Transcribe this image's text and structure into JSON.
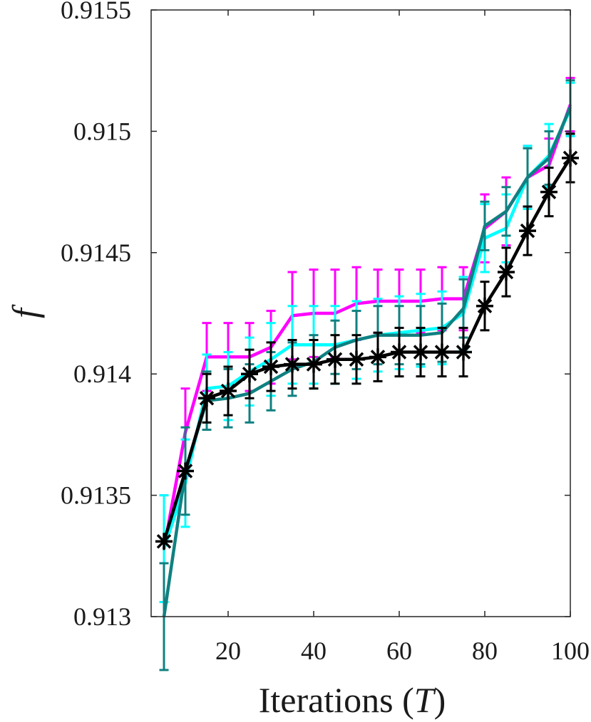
{
  "chart_data": {
    "type": "line",
    "title": "",
    "xlabel": "Iterations",
    "xlabel_var": "T",
    "ylabel": "f",
    "xlim": [
      2,
      100
    ],
    "ylim": [
      0.913,
      0.9155
    ],
    "x_ticks": [
      20,
      40,
      60,
      80,
      100
    ],
    "x_tick_labels": [
      "20",
      "40",
      "60",
      "80",
      "100"
    ],
    "y_ticks": [
      0.913,
      0.9135,
      0.914,
      0.9145,
      0.915,
      0.9155
    ],
    "y_tick_labels": [
      "0.913",
      "0.9135",
      "0.914",
      "0.9145",
      "0.915",
      "0.9155"
    ],
    "grid": false,
    "legend": null,
    "series": [
      {
        "color": "#ff00ff",
        "marker": "none",
        "x": [
          5,
          10,
          15,
          20,
          25,
          30,
          35,
          40,
          45,
          50,
          55,
          60,
          65,
          70,
          75,
          80,
          85,
          90,
          95,
          100
        ],
        "y": [
          0.91328,
          0.91376,
          0.91407,
          0.91407,
          0.91407,
          0.91411,
          0.91424,
          0.91425,
          0.91425,
          0.91429,
          0.9143,
          0.9143,
          0.9143,
          0.91431,
          0.91431,
          0.9146,
          0.91467,
          0.91481,
          0.91486,
          0.91511
        ],
        "err": [
          0.00022,
          0.00018,
          0.00014,
          0.00014,
          0.00014,
          0.00015,
          0.00018,
          0.00018,
          0.00018,
          0.00015,
          0.00013,
          0.00013,
          0.00013,
          0.00013,
          0.00013,
          0.00014,
          0.00014,
          0.00013,
          0.00011,
          0.00011
        ]
      },
      {
        "color": "#00ffff",
        "marker": "none",
        "x": [
          5,
          10,
          15,
          20,
          25,
          30,
          35,
          40,
          45,
          50,
          55,
          60,
          65,
          70,
          75,
          80,
          85,
          90,
          95,
          100
        ],
        "y": [
          0.91328,
          0.91355,
          0.91394,
          0.91395,
          0.91401,
          0.91406,
          0.91412,
          0.91412,
          0.91412,
          0.91414,
          0.91416,
          0.91417,
          0.91418,
          0.91419,
          0.91425,
          0.91456,
          0.9146,
          0.91481,
          0.9149,
          0.91509
        ],
        "err": [
          0.00022,
          0.00018,
          0.00014,
          0.00014,
          0.00014,
          0.00015,
          0.00016,
          0.00016,
          0.00016,
          0.00016,
          0.00015,
          0.00015,
          0.00015,
          0.00015,
          0.00015,
          0.00014,
          0.00014,
          0.00013,
          0.00013,
          0.00011
        ]
      },
      {
        "color": "#108080",
        "marker": "none",
        "x": [
          5,
          10,
          15,
          20,
          25,
          30,
          35,
          40,
          45,
          50,
          55,
          60,
          65,
          70,
          75,
          80,
          85,
          90,
          95,
          100
        ],
        "y": [
          0.913,
          0.9136,
          0.91389,
          0.9139,
          0.91392,
          0.91397,
          0.91402,
          0.91405,
          0.91411,
          0.91414,
          0.91416,
          0.91416,
          0.91416,
          0.91417,
          0.91427,
          0.91461,
          0.91467,
          0.91481,
          0.91489,
          0.9151
        ],
        "err": [
          0.00022,
          0.00018,
          0.00012,
          0.00012,
          0.00012,
          0.00012,
          0.00011,
          0.00011,
          0.00011,
          0.00012,
          0.00012,
          0.00012,
          0.00012,
          0.00012,
          0.00012,
          0.0001,
          0.0001,
          0.00012,
          0.00011,
          0.00011
        ]
      },
      {
        "color": "#000000",
        "marker": "asterisk",
        "x": [
          5,
          10,
          15,
          20,
          25,
          30,
          35,
          40,
          45,
          50,
          55,
          60,
          65,
          70,
          75,
          80,
          85,
          90,
          95,
          100
        ],
        "y": [
          0.91331,
          0.9136,
          0.9139,
          0.91393,
          0.914,
          0.91403,
          0.91404,
          0.91404,
          0.91406,
          0.91406,
          0.91407,
          0.91409,
          0.91409,
          0.91409,
          0.91409,
          0.91428,
          0.91442,
          0.91459,
          0.91475,
          0.91489
        ],
        "err": [
          0,
          0,
          0.0001,
          0.0001,
          0.0001,
          0.0001,
          0.0001,
          0.0001,
          0.0001,
          0.0001,
          0.0001,
          0.0001,
          0.0001,
          0.0001,
          0.0001,
          0.0001,
          0.0001,
          0.0001,
          0.0001,
          0.0001
        ]
      }
    ]
  }
}
